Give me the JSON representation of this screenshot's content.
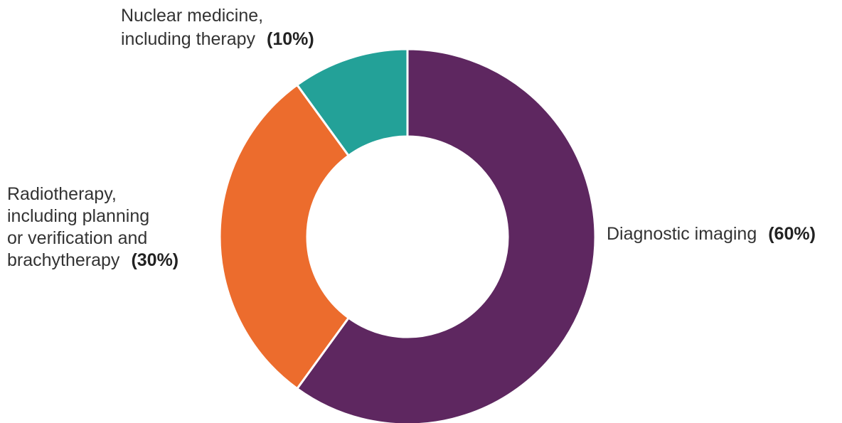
{
  "chart_data": {
    "type": "pie",
    "style": "donut",
    "slices": [
      {
        "label_lines": [
          "Diagnostic imaging"
        ],
        "percent_text": "(60%)",
        "value": 60,
        "color": "#5E2760"
      },
      {
        "label_lines": [
          "Radiotherapy,",
          "including planning",
          "or verification and",
          "brachytherapy"
        ],
        "percent_text": "(30%)",
        "value": 30,
        "color": "#EC6C2D"
      },
      {
        "label_lines": [
          "Nuclear medicine,",
          "including therapy"
        ],
        "percent_text": "(10%)",
        "value": 10,
        "color": "#23A198"
      }
    ],
    "slice_border_color": "#ffffff"
  }
}
